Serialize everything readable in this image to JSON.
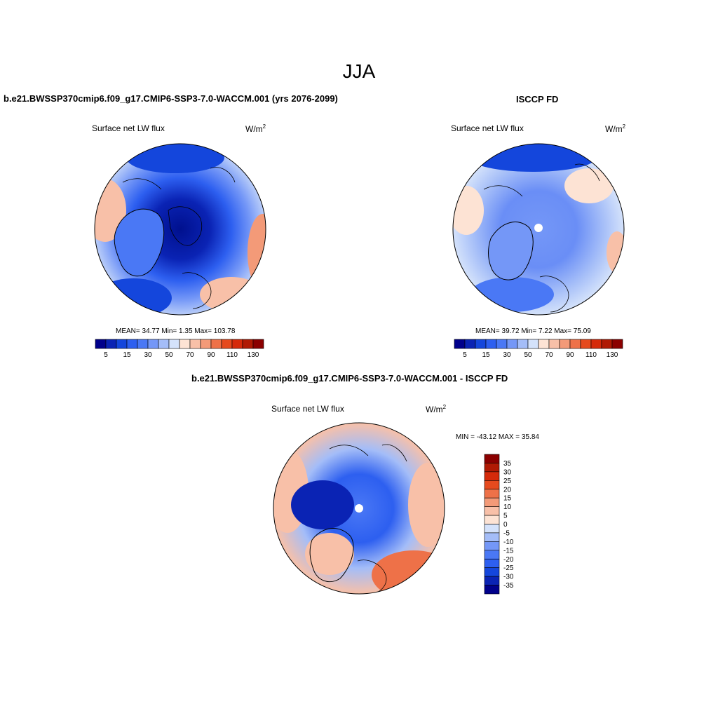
{
  "header": {
    "season": "JJA"
  },
  "panels": {
    "model": {
      "title": "b.e21.BWSSP370cmip6.f09_g17.CMIP6-SSP3-7.0-WACCM.001 (yrs 2076-2099)",
      "variable": "Surface net LW flux",
      "units_base": "W/m",
      "units_exp": "2",
      "stats": "MEAN=  34.77  Min=   1.35  Max= 103.78"
    },
    "obs": {
      "title": "ISCCP FD",
      "variable": "Surface net LW flux",
      "units_base": "W/m",
      "units_exp": "2",
      "stats": "MEAN=  39.72  Min=   7.22  Max=  75.09"
    },
    "diff": {
      "title": "b.e21.BWSSP370cmip6.f09_g17.CMIP6-SSP3-7.0-WACCM.001 - ISCCP FD",
      "variable": "Surface net LW flux",
      "units_base": "W/m",
      "units_exp": "2",
      "stats": "MIN = -43.12 MAX =  35.84"
    }
  },
  "chart_data": [
    {
      "type": "heatmap",
      "projection": "north polar stereographic",
      "title": "b.e21.BWSSP370cmip6.f09_g17.CMIP6-SSP3-7.0-WACCM.001 (yrs 2076-2099)",
      "variable": "Surface net LW flux",
      "units": "W/m2",
      "mean": 34.77,
      "min": 1.35,
      "max": 103.78,
      "colorbar_levels": [
        5,
        10,
        15,
        20,
        30,
        40,
        50,
        60,
        70,
        80,
        90,
        100,
        110,
        120,
        130
      ],
      "colorbar_tick_labels": [
        "5",
        "15",
        "30",
        "50",
        "70",
        "90",
        "110",
        "130"
      ],
      "colorbar_orientation": "horizontal"
    },
    {
      "type": "heatmap",
      "projection": "north polar stereographic",
      "title": "ISCCP FD",
      "variable": "Surface net LW flux",
      "units": "W/m2",
      "mean": 39.72,
      "min": 7.22,
      "max": 75.09,
      "colorbar_levels": [
        5,
        10,
        15,
        20,
        30,
        40,
        50,
        60,
        70,
        80,
        90,
        100,
        110,
        120,
        130
      ],
      "colorbar_tick_labels": [
        "5",
        "15",
        "30",
        "50",
        "70",
        "90",
        "110",
        "130"
      ],
      "colorbar_orientation": "horizontal"
    },
    {
      "type": "heatmap",
      "projection": "north polar stereographic",
      "title": "b.e21.BWSSP370cmip6.f09_g17.CMIP6-SSP3-7.0-WACCM.001 - ISCCP FD",
      "variable": "Surface net LW flux",
      "units": "W/m2",
      "min": -43.12,
      "max": 35.84,
      "colorbar_levels": [
        35,
        30,
        25,
        20,
        15,
        10,
        5,
        0,
        -5,
        -10,
        -15,
        -20,
        -25,
        -30,
        -35
      ],
      "colorbar_tick_labels": [
        "35",
        "30",
        "25",
        "20",
        "15",
        "10",
        "5",
        "0",
        "-5",
        "-10",
        "-15",
        "-20",
        "-25",
        "-30",
        "-35"
      ],
      "colorbar_orientation": "vertical"
    }
  ],
  "colors": {
    "colorbar16": [
      "#00008b",
      "#0a23b4",
      "#1446dc",
      "#2d5ff0",
      "#4a78f5",
      "#7497f7",
      "#a4bdf8",
      "#d4e2fb",
      "#fde3d4",
      "#f8c0a8",
      "#f39a78",
      "#ee7148",
      "#e64a1e",
      "#d52a0a",
      "#b01a04",
      "#8b0000"
    ],
    "land_outline": "#000000",
    "disk_border": "#000000"
  }
}
